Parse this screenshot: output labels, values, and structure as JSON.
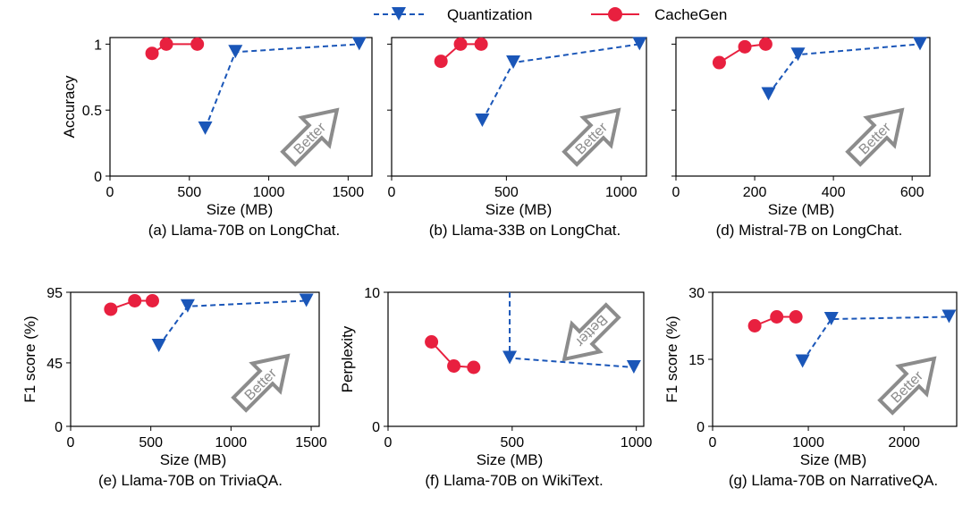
{
  "legend": {
    "placement": "top-center",
    "items": [
      {
        "label": "Quantization",
        "color": "#1a56b8",
        "marker": "triangle-down",
        "line": "dashed"
      },
      {
        "label": "CacheGen",
        "color": "#e8203f",
        "marker": "circle",
        "line": "solid"
      }
    ]
  },
  "arrow_label": "Better",
  "chart_data": [
    {
      "type": "line",
      "caption": "(a) Llama-70B on LongChat.",
      "xlabel": "Size (MB)",
      "ylabel": "Accuracy",
      "xlim": [
        0,
        1650
      ],
      "ylim": [
        0,
        1.05
      ],
      "xticks": [
        0,
        500,
        1000,
        1500
      ],
      "xticklabels": [
        "0",
        "500",
        "1000",
        "1500"
      ],
      "yticks": [
        0,
        0.5,
        1
      ],
      "yticklabels": [
        "0",
        "0.5",
        "1"
      ],
      "series": [
        {
          "name": "Quantization",
          "x": [
            600,
            790,
            1570
          ],
          "y": [
            0.36,
            0.94,
            1.0
          ]
        },
        {
          "name": "CacheGen",
          "x": [
            265,
            355,
            550
          ],
          "y": [
            0.93,
            1.0,
            1.0
          ]
        }
      ]
    },
    {
      "type": "line",
      "caption": "(b) Llama-33B on LongChat.",
      "xlabel": "Size (MB)",
      "ylabel": "",
      "xlim": [
        0,
        1110
      ],
      "ylim": [
        0,
        1.05
      ],
      "xticks": [
        0,
        500,
        1000
      ],
      "xticklabels": [
        "0",
        "500",
        "1000"
      ],
      "yticks": [
        0,
        0.5,
        1
      ],
      "yticklabels": [],
      "series": [
        {
          "name": "Quantization",
          "x": [
            395,
            530,
            1080
          ],
          "y": [
            0.42,
            0.86,
            1.0
          ]
        },
        {
          "name": "CacheGen",
          "x": [
            215,
            300,
            390
          ],
          "y": [
            0.87,
            1.0,
            1.0
          ]
        }
      ]
    },
    {
      "type": "line",
      "caption": "(d) Mistral-7B on LongChat.",
      "xlabel": "Size (MB)",
      "ylabel": "",
      "xlim": [
        0,
        645
      ],
      "ylim": [
        0,
        1.05
      ],
      "xticks": [
        0,
        200,
        400,
        600
      ],
      "xticklabels": [
        "0",
        "200",
        "400",
        "600"
      ],
      "yticks": [
        0,
        0.5,
        1
      ],
      "yticklabels": [],
      "series": [
        {
          "name": "Quantization",
          "x": [
            235,
            310,
            620
          ],
          "y": [
            0.62,
            0.92,
            1.0
          ]
        },
        {
          "name": "CacheGen",
          "x": [
            110,
            175,
            228
          ],
          "y": [
            0.86,
            0.98,
            1.0
          ]
        }
      ]
    },
    {
      "type": "line",
      "caption": "(e) Llama-70B on TriviaQA.",
      "xlabel": "Size (MB)",
      "ylabel": "F1 score (%)",
      "xlim": [
        0,
        1550
      ],
      "ylim": [
        0,
        95
      ],
      "xticks": [
        0,
        500,
        1000,
        1500
      ],
      "xticklabels": [
        "0",
        "500",
        "1000",
        "1500"
      ],
      "yticks": [
        0,
        45,
        95
      ],
      "yticklabels": [
        "0",
        "45",
        "95"
      ],
      "series": [
        {
          "name": "Quantization",
          "x": [
            550,
            730,
            1470
          ],
          "y": [
            57,
            85,
            89
          ]
        },
        {
          "name": "CacheGen",
          "x": [
            250,
            400,
            510
          ],
          "y": [
            83,
            89,
            89
          ]
        }
      ]
    },
    {
      "type": "line",
      "caption": "(f) Llama-70B on WikiText.",
      "xlabel": "Size (MB)",
      "ylabel": "Perplexity",
      "xlim": [
        0,
        1030
      ],
      "ylim": [
        0,
        10
      ],
      "xticks": [
        0,
        500,
        1000
      ],
      "xticklabels": [
        "0",
        "500",
        "1000"
      ],
      "yticks": [
        0,
        10
      ],
      "yticklabels": [
        "0",
        "10"
      ],
      "series": [
        {
          "name": "Quantization",
          "x": [
            490,
            490,
            990
          ],
          "y": [
            10,
            5.1,
            4.4
          ]
        },
        {
          "name": "CacheGen",
          "x": [
            175,
            265,
            345
          ],
          "y": [
            6.3,
            4.5,
            4.4
          ]
        }
      ]
    },
    {
      "type": "line",
      "caption": "(g) Llama-70B on NarrativeQA.",
      "xlabel": "Size (MB)",
      "ylabel": "F1 score (%)",
      "xlim": [
        0,
        2550
      ],
      "ylim": [
        0,
        30
      ],
      "xticks": [
        0,
        1000,
        2000
      ],
      "xticklabels": [
        "0",
        "1000",
        "2000"
      ],
      "yticks": [
        0,
        15,
        30
      ],
      "yticklabels": [
        "0",
        "15",
        "30"
      ],
      "series": [
        {
          "name": "Quantization",
          "x": [
            940,
            1240,
            2470
          ],
          "y": [
            14.5,
            24,
            24.5
          ]
        },
        {
          "name": "CacheGen",
          "x": [
            440,
            670,
            870
          ],
          "y": [
            22.5,
            24.5,
            24.5
          ]
        }
      ]
    }
  ]
}
